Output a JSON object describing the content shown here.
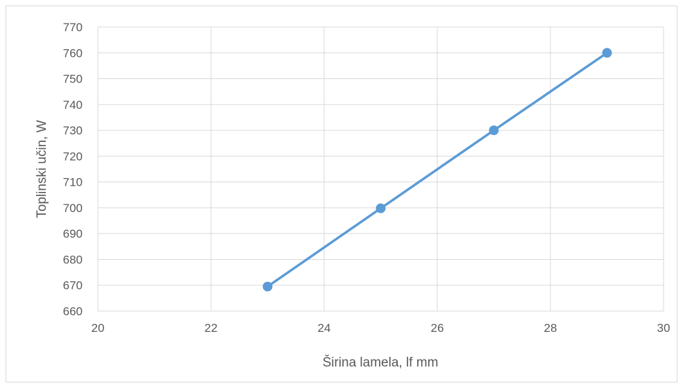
{
  "chart_data": {
    "type": "line",
    "title": "",
    "xlabel": "Širina lamela, lf  mm",
    "ylabel": "Toplinski učin, W",
    "xlim": [
      20,
      30
    ],
    "ylim": [
      660,
      770
    ],
    "x_ticks": [
      20,
      22,
      24,
      26,
      28,
      30
    ],
    "y_ticks": [
      660,
      670,
      680,
      690,
      700,
      710,
      720,
      730,
      740,
      750,
      760,
      770
    ],
    "grid": true,
    "legend": "none",
    "series": [
      {
        "x": [
          23,
          25,
          27,
          29
        ],
        "y": [
          669.5,
          699.8,
          730,
          760
        ],
        "color": "#5b9bd5"
      }
    ],
    "colors": {
      "grid": "#d9d9d9",
      "text": "#595959",
      "frame": "#d9d9d9"
    }
  }
}
